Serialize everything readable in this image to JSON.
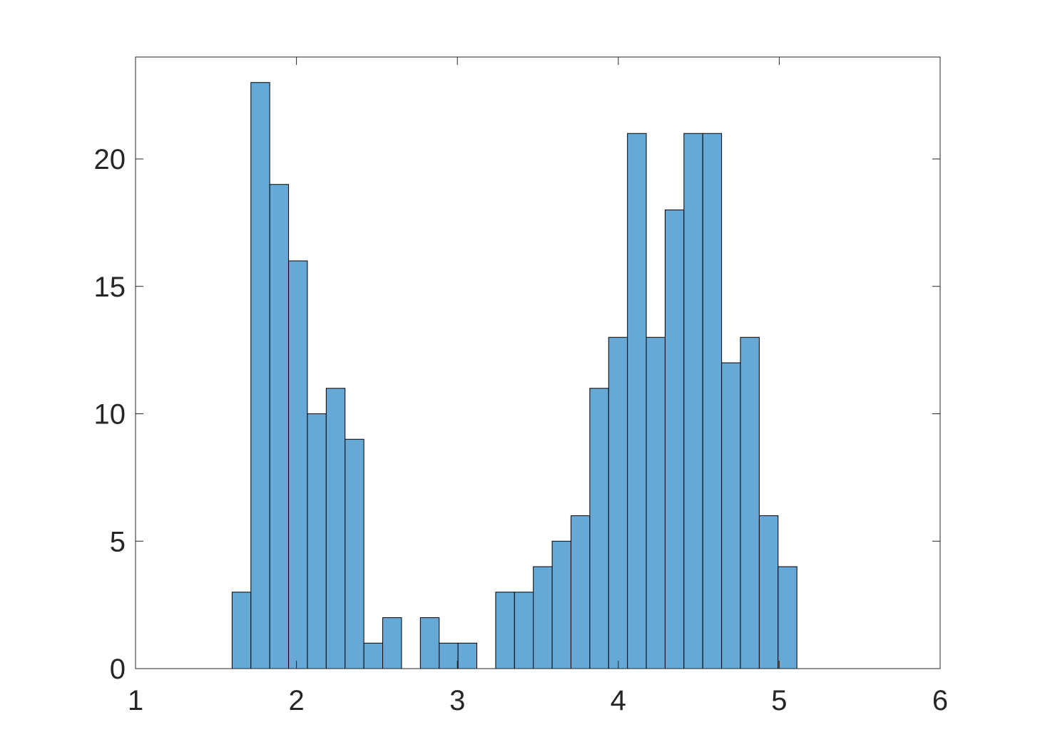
{
  "chart_data": {
    "type": "histogram",
    "bins": [
      1.6,
      1.717,
      1.834,
      1.951,
      2.068,
      2.185,
      2.302,
      2.419,
      2.536,
      2.653,
      2.77,
      2.887,
      3.004,
      3.121,
      3.238,
      3.355,
      3.472,
      3.589,
      3.706,
      3.823,
      3.94,
      4.057,
      4.174,
      4.291,
      4.408,
      4.525,
      4.642,
      4.759,
      4.876,
      4.993,
      5.11
    ],
    "values": [
      3,
      23,
      19,
      16,
      10,
      11,
      9,
      1,
      2,
      0,
      2,
      1,
      1,
      0,
      3,
      3,
      4,
      5,
      6,
      11,
      13,
      21,
      13,
      18,
      21,
      21,
      12,
      13,
      6,
      4
    ],
    "color": "#66a9d6",
    "xlim": [
      1,
      6
    ],
    "xticks": [
      1,
      2,
      3,
      4,
      5,
      6
    ],
    "ylim": [
      0,
      24
    ],
    "yticks": [
      0,
      5,
      10,
      15,
      20
    ],
    "grid": false
  }
}
